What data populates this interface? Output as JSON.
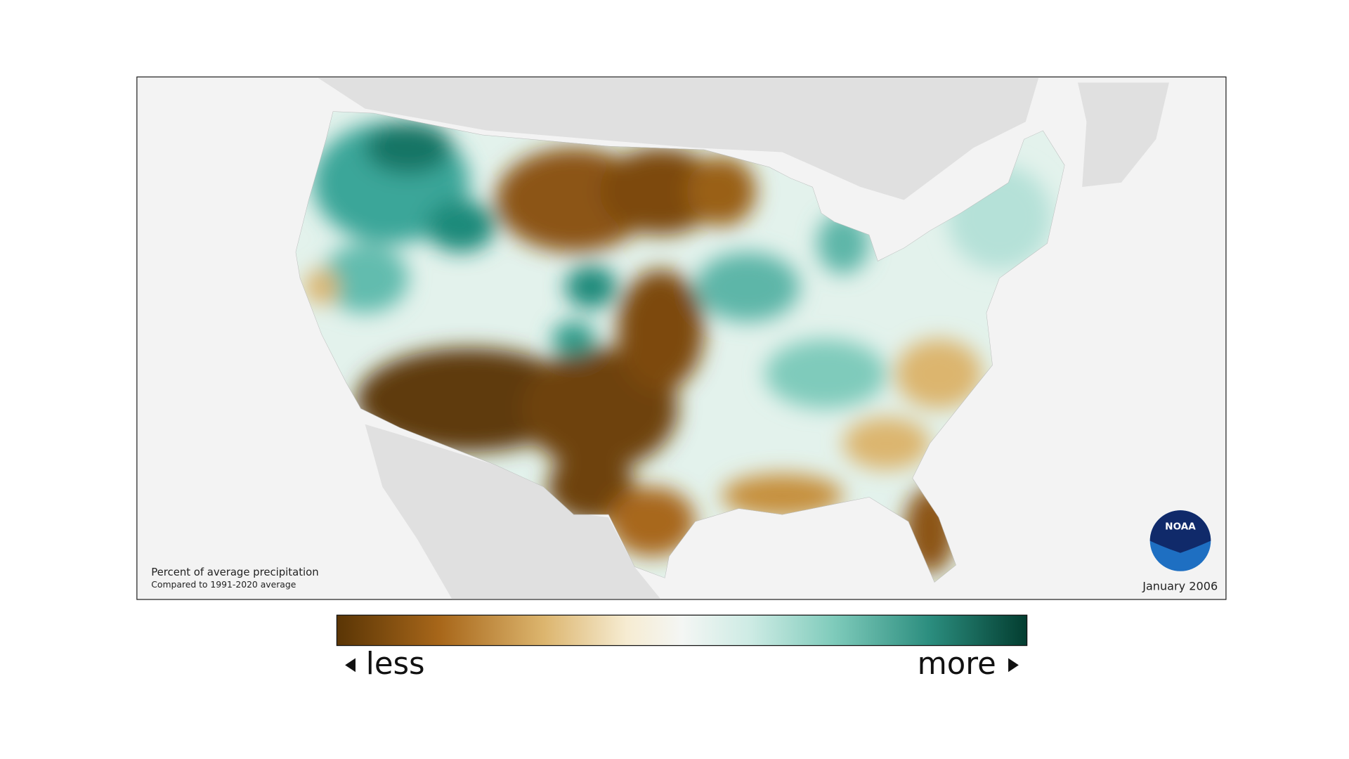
{
  "map": {
    "caption": {
      "title": "Percent of average precipitation",
      "subtitle": "Compared to 1991-2020 average"
    },
    "date": "January 2006",
    "logo": "NOAA",
    "legend": {
      "low": "less",
      "high": "more"
    }
  }
}
